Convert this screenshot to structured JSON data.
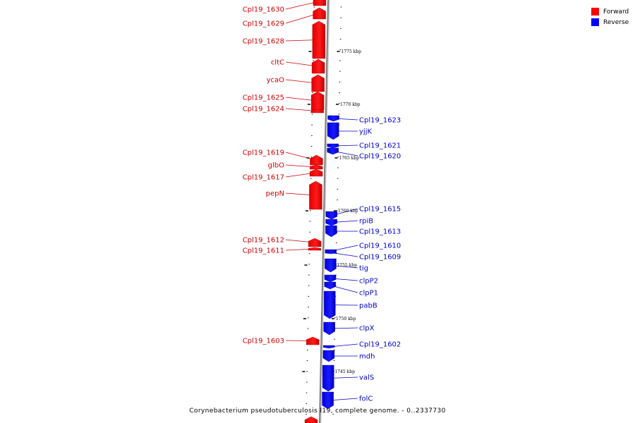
{
  "caption": "Corynebacterium pseudotuberculosis I19, complete genome. - 0..2337730",
  "legend": {
    "forward_label": "Forward",
    "reverse_label": "Reverse",
    "forward_color": "#ff0000",
    "reverse_color": "#0000ff"
  },
  "scale_labels": [
    {
      "text": "1775 kbp",
      "kbp": 1775
    },
    {
      "text": "1770 kbp",
      "kbp": 1770
    },
    {
      "text": "1765 kbp",
      "kbp": 1765
    },
    {
      "text": "1760 kbp",
      "kbp": 1760
    },
    {
      "text": "1755 kbp",
      "kbp": 1755
    },
    {
      "text": "1750 kbp",
      "kbp": 1750
    },
    {
      "text": "1745 kbp",
      "kbp": 1745
    }
  ],
  "forward_genes": [
    {
      "label": "Cpl19_1630"
    },
    {
      "label": "Cpl19_1629"
    },
    {
      "label": "Cpl19_1628"
    },
    {
      "label": "cltC"
    },
    {
      "label": "ycaO"
    },
    {
      "label": "Cpl19_1625"
    },
    {
      "label": "Cpl19_1624"
    },
    {
      "label": "Cpl19_1619"
    },
    {
      "label": "glbO"
    },
    {
      "label": "Cpl19_1617"
    },
    {
      "label": "pepN"
    },
    {
      "label": "Cpl19_1612"
    },
    {
      "label": "Cpl19_1611"
    },
    {
      "label": "Cpl19_1603"
    }
  ],
  "reverse_genes": [
    {
      "label": "Cpl19_1623"
    },
    {
      "label": "yjjK"
    },
    {
      "label": "Cpl19_1621"
    },
    {
      "label": "Cpl19_1620"
    },
    {
      "label": "Cpl19_1615"
    },
    {
      "label": "rpiB"
    },
    {
      "label": "Cpl19_1613"
    },
    {
      "label": "Cpl19_1610"
    },
    {
      "label": "Cpl19_1609"
    },
    {
      "label": "tig"
    },
    {
      "label": "clpP2"
    },
    {
      "label": "clpP1"
    },
    {
      "label": "pabB"
    },
    {
      "label": "clpX"
    },
    {
      "label": "Cpl19_1602"
    },
    {
      "label": "mdh"
    },
    {
      "label": "valS"
    },
    {
      "label": "folC"
    }
  ]
}
